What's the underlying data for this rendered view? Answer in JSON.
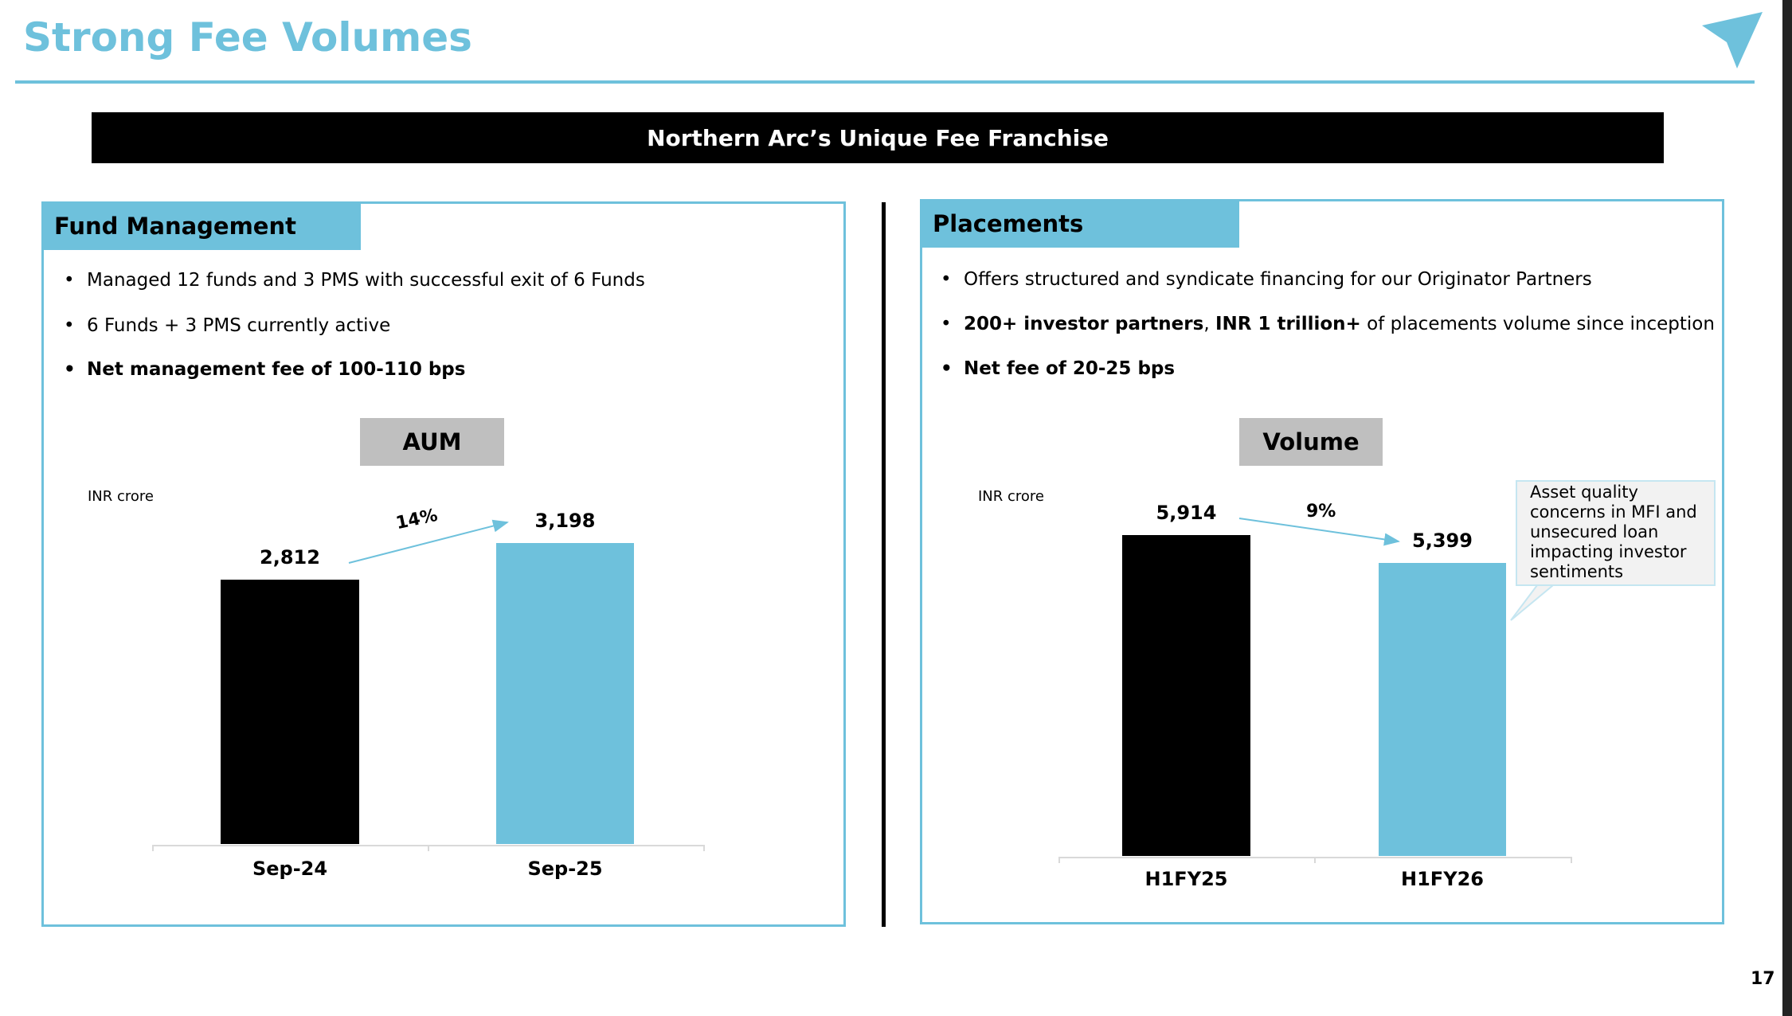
{
  "title": "Strong Fee Volumes",
  "banner": "Northern Arc’s Unique Fee Franchise",
  "page_number": "17",
  "colors": {
    "accent": "#6EC1DC",
    "black": "#000000",
    "box_gray": "#BFBFBF",
    "callout_bg": "#F2F2F2"
  },
  "logo": {
    "icon": "paper-plane-arrow-icon"
  },
  "left": {
    "tab": "Fund Management",
    "bullets": [
      {
        "text": "Managed 12 funds and 3 PMS with successful exit of 6 Funds"
      },
      {
        "text": "6 Funds + 3 PMS currently active"
      },
      {
        "text": "Net management fee of 100-110 bps"
      }
    ],
    "box": "AUM",
    "unit": "INR crore",
    "growth": "14%"
  },
  "right": {
    "tab": "Placements",
    "bullets": [
      {
        "text": "Offers structured and syndicate financing for our Originator Partners"
      },
      {
        "b1": "200+ investor partners",
        "sep": ", ",
        "b2": "INR 1 trillion+",
        "rest": " of placements volume since inception"
      },
      {
        "text": "Net fee of 20-25 bps"
      }
    ],
    "box": "Volume",
    "unit": "INR crore",
    "growth": "9%",
    "callout": "Asset quality concerns in MFI and unsecured loan impacting investor sentiments"
  },
  "chart_data": [
    {
      "type": "bar",
      "title": "AUM",
      "ylabel": "INR crore",
      "categories": [
        "Sep-24",
        "Sep-25"
      ],
      "values": [
        2812,
        3198
      ],
      "labels": [
        "2,812",
        "3,198"
      ],
      "colors": [
        "#000000",
        "#6EC1DC"
      ],
      "annotation": "14%"
    },
    {
      "type": "bar",
      "title": "Volume",
      "ylabel": "INR crore",
      "categories": [
        "H1FY25",
        "H1FY26"
      ],
      "values": [
        5914,
        5399
      ],
      "labels": [
        "5,914",
        "5,399"
      ],
      "colors": [
        "#000000",
        "#6EC1DC"
      ],
      "annotation": "9%"
    }
  ]
}
